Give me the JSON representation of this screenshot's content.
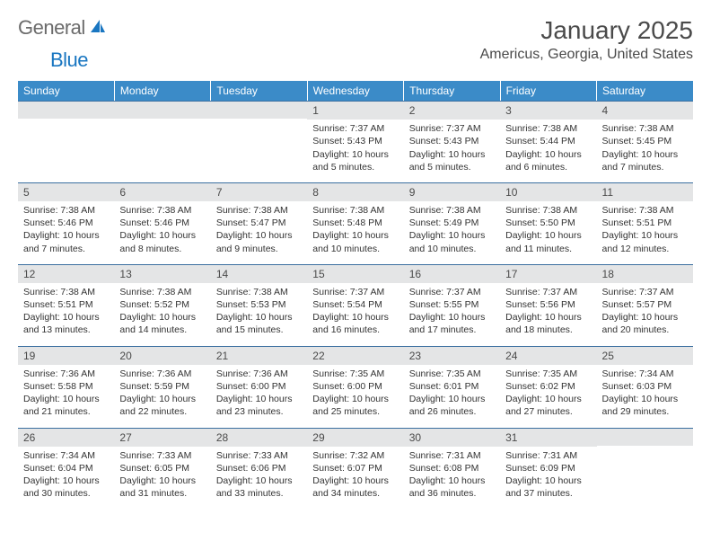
{
  "logo": {
    "text1": "General",
    "text2": "Blue"
  },
  "title": "January 2025",
  "location": "Americus, Georgia, United States",
  "colors": {
    "header_bg": "#3b8bc8",
    "header_fg": "#ffffff",
    "daynum_bg": "#e4e5e6",
    "border": "#3b6fa0",
    "text": "#333333",
    "title_text": "#4a4a4a",
    "logo_gray": "#6b6b6b",
    "logo_blue": "#1976c1"
  },
  "weekdays": [
    "Sunday",
    "Monday",
    "Tuesday",
    "Wednesday",
    "Thursday",
    "Friday",
    "Saturday"
  ],
  "weeks": [
    [
      null,
      null,
      null,
      {
        "d": "1",
        "sunrise": "7:37 AM",
        "sunset": "5:43 PM",
        "daylight": "10 hours and 5 minutes."
      },
      {
        "d": "2",
        "sunrise": "7:37 AM",
        "sunset": "5:43 PM",
        "daylight": "10 hours and 5 minutes."
      },
      {
        "d": "3",
        "sunrise": "7:38 AM",
        "sunset": "5:44 PM",
        "daylight": "10 hours and 6 minutes."
      },
      {
        "d": "4",
        "sunrise": "7:38 AM",
        "sunset": "5:45 PM",
        "daylight": "10 hours and 7 minutes."
      }
    ],
    [
      {
        "d": "5",
        "sunrise": "7:38 AM",
        "sunset": "5:46 PM",
        "daylight": "10 hours and 7 minutes."
      },
      {
        "d": "6",
        "sunrise": "7:38 AM",
        "sunset": "5:46 PM",
        "daylight": "10 hours and 8 minutes."
      },
      {
        "d": "7",
        "sunrise": "7:38 AM",
        "sunset": "5:47 PM",
        "daylight": "10 hours and 9 minutes."
      },
      {
        "d": "8",
        "sunrise": "7:38 AM",
        "sunset": "5:48 PM",
        "daylight": "10 hours and 10 minutes."
      },
      {
        "d": "9",
        "sunrise": "7:38 AM",
        "sunset": "5:49 PM",
        "daylight": "10 hours and 10 minutes."
      },
      {
        "d": "10",
        "sunrise": "7:38 AM",
        "sunset": "5:50 PM",
        "daylight": "10 hours and 11 minutes."
      },
      {
        "d": "11",
        "sunrise": "7:38 AM",
        "sunset": "5:51 PM",
        "daylight": "10 hours and 12 minutes."
      }
    ],
    [
      {
        "d": "12",
        "sunrise": "7:38 AM",
        "sunset": "5:51 PM",
        "daylight": "10 hours and 13 minutes."
      },
      {
        "d": "13",
        "sunrise": "7:38 AM",
        "sunset": "5:52 PM",
        "daylight": "10 hours and 14 minutes."
      },
      {
        "d": "14",
        "sunrise": "7:38 AM",
        "sunset": "5:53 PM",
        "daylight": "10 hours and 15 minutes."
      },
      {
        "d": "15",
        "sunrise": "7:37 AM",
        "sunset": "5:54 PM",
        "daylight": "10 hours and 16 minutes."
      },
      {
        "d": "16",
        "sunrise": "7:37 AM",
        "sunset": "5:55 PM",
        "daylight": "10 hours and 17 minutes."
      },
      {
        "d": "17",
        "sunrise": "7:37 AM",
        "sunset": "5:56 PM",
        "daylight": "10 hours and 18 minutes."
      },
      {
        "d": "18",
        "sunrise": "7:37 AM",
        "sunset": "5:57 PM",
        "daylight": "10 hours and 20 minutes."
      }
    ],
    [
      {
        "d": "19",
        "sunrise": "7:36 AM",
        "sunset": "5:58 PM",
        "daylight": "10 hours and 21 minutes."
      },
      {
        "d": "20",
        "sunrise": "7:36 AM",
        "sunset": "5:59 PM",
        "daylight": "10 hours and 22 minutes."
      },
      {
        "d": "21",
        "sunrise": "7:36 AM",
        "sunset": "6:00 PM",
        "daylight": "10 hours and 23 minutes."
      },
      {
        "d": "22",
        "sunrise": "7:35 AM",
        "sunset": "6:00 PM",
        "daylight": "10 hours and 25 minutes."
      },
      {
        "d": "23",
        "sunrise": "7:35 AM",
        "sunset": "6:01 PM",
        "daylight": "10 hours and 26 minutes."
      },
      {
        "d": "24",
        "sunrise": "7:35 AM",
        "sunset": "6:02 PM",
        "daylight": "10 hours and 27 minutes."
      },
      {
        "d": "25",
        "sunrise": "7:34 AM",
        "sunset": "6:03 PM",
        "daylight": "10 hours and 29 minutes."
      }
    ],
    [
      {
        "d": "26",
        "sunrise": "7:34 AM",
        "sunset": "6:04 PM",
        "daylight": "10 hours and 30 minutes."
      },
      {
        "d": "27",
        "sunrise": "7:33 AM",
        "sunset": "6:05 PM",
        "daylight": "10 hours and 31 minutes."
      },
      {
        "d": "28",
        "sunrise": "7:33 AM",
        "sunset": "6:06 PM",
        "daylight": "10 hours and 33 minutes."
      },
      {
        "d": "29",
        "sunrise": "7:32 AM",
        "sunset": "6:07 PM",
        "daylight": "10 hours and 34 minutes."
      },
      {
        "d": "30",
        "sunrise": "7:31 AM",
        "sunset": "6:08 PM",
        "daylight": "10 hours and 36 minutes."
      },
      {
        "d": "31",
        "sunrise": "7:31 AM",
        "sunset": "6:09 PM",
        "daylight": "10 hours and 37 minutes."
      },
      null
    ]
  ],
  "labels": {
    "sunrise": "Sunrise:",
    "sunset": "Sunset:",
    "daylight": "Daylight:"
  }
}
